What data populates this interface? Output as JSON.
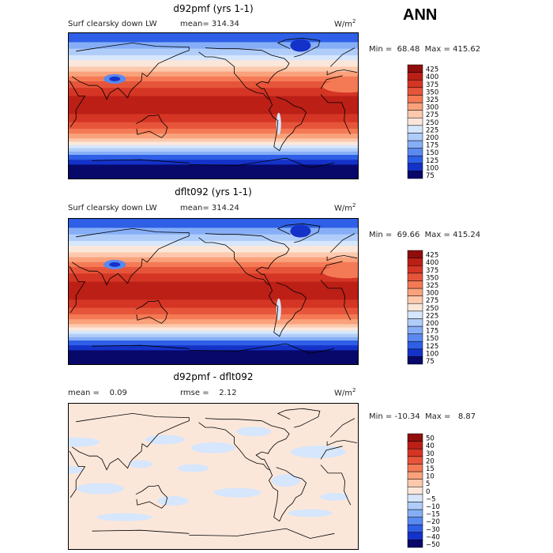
{
  "season": "ANN",
  "colors": {
    "abs_scale": [
      "#08086a",
      "#1432c8",
      "#2e5fe6",
      "#5a89f0",
      "#86aef6",
      "#b0cdfa",
      "#d6e6fc",
      "#fbe7da",
      "#fcc9ad",
      "#f9a27c",
      "#f47a55",
      "#e6553a",
      "#d43524",
      "#bb1f16",
      "#8f0e0c"
    ],
    "diff_scale": [
      "#08086a",
      "#1432c8",
      "#2e5fe6",
      "#5a89f0",
      "#86aef6",
      "#b0cdfa",
      "#d6e6fc",
      "#fbe7da",
      "#fcc9ad",
      "#f9a27c",
      "#f47a55",
      "#e6553a",
      "#d43524",
      "#bb1f16",
      "#8f0e0c"
    ]
  },
  "panels": [
    {
      "title": "d92pmf (yrs 1-1)",
      "variable": "Surf clearsky down LW",
      "stat1": "mean= 314.34",
      "stat2": "",
      "units": "W/m",
      "units_sup": "2",
      "min_label": "Min =",
      "min_value": "68.48",
      "max_label": "Max =",
      "max_value": "415.62",
      "map_type": "abs"
    },
    {
      "title": "dflt092 (yrs 1-1)",
      "variable": "Surf clearsky down LW",
      "stat1": "mean= 314.24",
      "stat2": "",
      "units": "W/m",
      "units_sup": "2",
      "min_label": "Min =",
      "min_value": "69.66",
      "max_label": "Max =",
      "max_value": "415.24",
      "map_type": "abs"
    },
    {
      "title": "d92pmf - dflt092",
      "variable": "",
      "stat1": "mean =    0.09",
      "stat2": "rmse =    2.12",
      "units": "W/m",
      "units_sup": "2",
      "min_label": "Min =",
      "min_value": "-10.34",
      "max_label": "Max =",
      "max_value": "8.87",
      "map_type": "diff"
    }
  ],
  "chart_data": [
    {
      "type": "heatmap",
      "title": "d92pmf (yrs 1-1)",
      "variable": "Surf clearsky down LW",
      "units": "W/m2",
      "mean": 314.34,
      "min": 68.48,
      "max": 415.62,
      "colorbar_levels": [
        75,
        100,
        125,
        150,
        175,
        200,
        225,
        250,
        275,
        300,
        325,
        350,
        375,
        400,
        425
      ]
    },
    {
      "type": "heatmap",
      "title": "dflt092 (yrs 1-1)",
      "variable": "Surf clearsky down LW",
      "units": "W/m2",
      "mean": 314.24,
      "min": 69.66,
      "max": 415.24,
      "colorbar_levels": [
        75,
        100,
        125,
        150,
        175,
        200,
        225,
        250,
        275,
        300,
        325,
        350,
        375,
        400,
        425
      ]
    },
    {
      "type": "heatmap",
      "title": "d92pmf - dflt092",
      "units": "W/m2",
      "mean": 0.09,
      "rmse": 2.12,
      "min": -10.34,
      "max": 8.87,
      "colorbar_levels": [
        -50,
        -40,
        -30,
        -20,
        -15,
        -10,
        -5,
        0,
        5,
        10,
        15,
        20,
        30,
        40,
        50
      ]
    }
  ]
}
